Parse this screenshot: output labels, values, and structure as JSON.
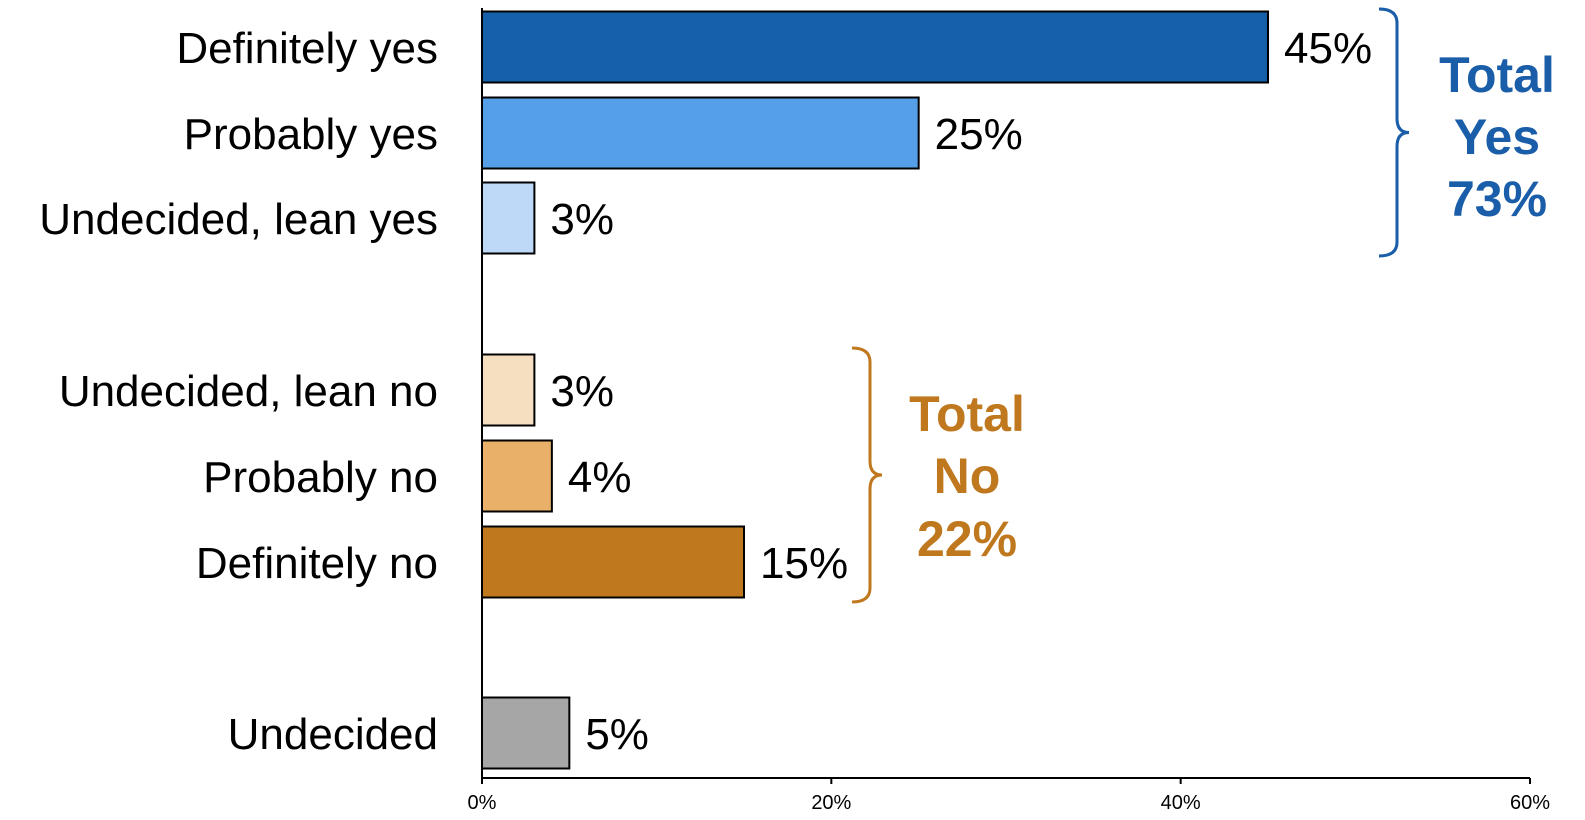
{
  "chart_data": {
    "type": "bar",
    "orientation": "horizontal",
    "categories": [
      "Definitely yes",
      "Probably yes",
      "Undecided, lean yes",
      "Undecided, lean no",
      "Probably no",
      "Definitely no",
      "Undecided"
    ],
    "values": [
      45,
      25,
      3,
      3,
      4,
      15,
      5
    ],
    "value_labels": [
      "45%",
      "25%",
      "3%",
      "3%",
      "4%",
      "15%",
      "5%"
    ],
    "bar_colors": [
      "#1660AA",
      "#549FE8",
      "#BDD9F7",
      "#F6DEC0",
      "#E8B068",
      "#BF781E",
      "#A6A6A6"
    ],
    "xlim": [
      0,
      60
    ],
    "x_ticks": [
      0,
      20,
      40,
      60
    ],
    "x_tick_labels": [
      "0%",
      "20%",
      "40%",
      "60%"
    ],
    "grid": false,
    "legend": "none",
    "groups": [
      {
        "label_lines": [
          "Total",
          "Yes",
          "73%"
        ],
        "color": "#1A5DA8",
        "members": [
          0,
          1,
          2
        ]
      },
      {
        "label_lines": [
          "Total",
          "No",
          "22%"
        ],
        "color": "#BF781E",
        "members": [
          3,
          4,
          5
        ]
      }
    ]
  }
}
